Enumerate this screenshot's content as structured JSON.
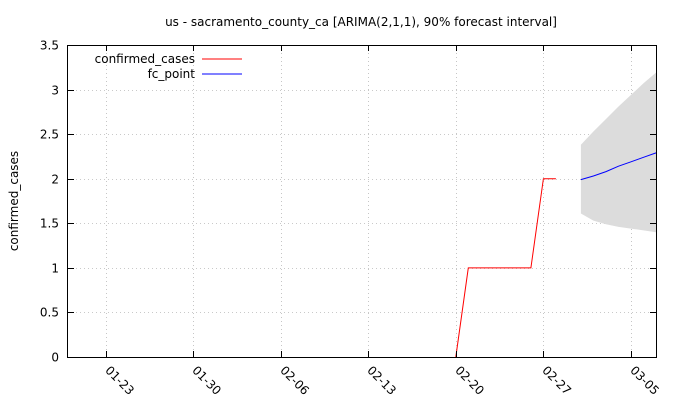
{
  "chart_data": {
    "type": "line",
    "title": "us - sacramento_county_ca [ARIMA(2,1,1), 90% forecast interval]",
    "xlabel": "",
    "ylabel": "confirmed_cases",
    "ylim": [
      0,
      3.5
    ],
    "xlim": [
      "2020-01-20",
      "2020-03-07"
    ],
    "yticks": [
      "0",
      "0.5",
      "1",
      "1.5",
      "2",
      "2.5",
      "3",
      "3.5"
    ],
    "xticks": [
      {
        "date": "2020-01-23",
        "label": "01-23"
      },
      {
        "date": "2020-01-30",
        "label": "01-30"
      },
      {
        "date": "2020-02-06",
        "label": "02-06"
      },
      {
        "date": "2020-02-13",
        "label": "02-13"
      },
      {
        "date": "2020-02-20",
        "label": "02-20"
      },
      {
        "date": "2020-02-27",
        "label": "02-27"
      },
      {
        "date": "2020-03-05",
        "label": "03-05"
      }
    ],
    "grid": true,
    "legend_position": "top-left",
    "series": [
      {
        "name": "confirmed_cases",
        "color": "#ff0000",
        "points": [
          [
            "2020-02-20",
            0
          ],
          [
            "2020-02-21",
            1
          ],
          [
            "2020-02-26",
            1
          ],
          [
            "2020-02-27",
            2
          ],
          [
            "2020-02-28",
            2
          ]
        ]
      },
      {
        "name": "fc_point",
        "color": "#0000ff",
        "points": [
          [
            "2020-03-01",
            1.99
          ],
          [
            "2020-03-02",
            2.03
          ],
          [
            "2020-03-03",
            2.08
          ],
          [
            "2020-03-04",
            2.14
          ],
          [
            "2020-03-05",
            2.19
          ],
          [
            "2020-03-06",
            2.24
          ],
          [
            "2020-03-07",
            2.29
          ]
        ]
      }
    ],
    "interval": {
      "color": "#dcdcdc",
      "lower": [
        [
          "2020-03-01",
          1.61
        ],
        [
          "2020-03-02",
          1.53
        ],
        [
          "2020-03-03",
          1.49
        ],
        [
          "2020-03-04",
          1.46
        ],
        [
          "2020-03-05",
          1.44
        ],
        [
          "2020-03-06",
          1.42
        ],
        [
          "2020-03-07",
          1.4
        ]
      ],
      "upper": [
        [
          "2020-03-01",
          2.38
        ],
        [
          "2020-03-02",
          2.53
        ],
        [
          "2020-03-03",
          2.67
        ],
        [
          "2020-03-04",
          2.81
        ],
        [
          "2020-03-05",
          2.94
        ],
        [
          "2020-03-06",
          3.07
        ],
        [
          "2020-03-07",
          3.19
        ]
      ]
    }
  }
}
